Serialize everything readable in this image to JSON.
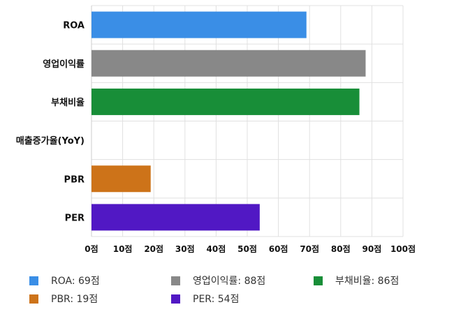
{
  "chart_data": {
    "type": "bar",
    "orientation": "horizontal",
    "categories": [
      "ROA",
      "영업이익률",
      "부채비율",
      "매출증가율(YoY)",
      "PBR",
      "PER"
    ],
    "values": [
      69,
      88,
      86,
      0,
      19,
      54
    ],
    "colors": [
      "#3a8ee6",
      "#888888",
      "#188e38",
      "#ff8c00",
      "#cd7319",
      "#5118c4"
    ],
    "xlim": [
      0,
      100
    ],
    "x_ticks": [
      "0점",
      "10점",
      "20점",
      "30점",
      "40점",
      "50점",
      "60점",
      "70점",
      "80점",
      "90점",
      "100점"
    ],
    "grid": true,
    "legend_position": "bottom",
    "legend": [
      {
        "label": "ROA: 69점",
        "color": "#3a8ee6"
      },
      {
        "label": "영업이익률: 88점",
        "color": "#888888"
      },
      {
        "label": "부채비율: 86점",
        "color": "#188e38"
      },
      {
        "label": "PBR: 19점",
        "color": "#cd7319"
      },
      {
        "label": "PER: 54점",
        "color": "#5118c4"
      }
    ]
  }
}
